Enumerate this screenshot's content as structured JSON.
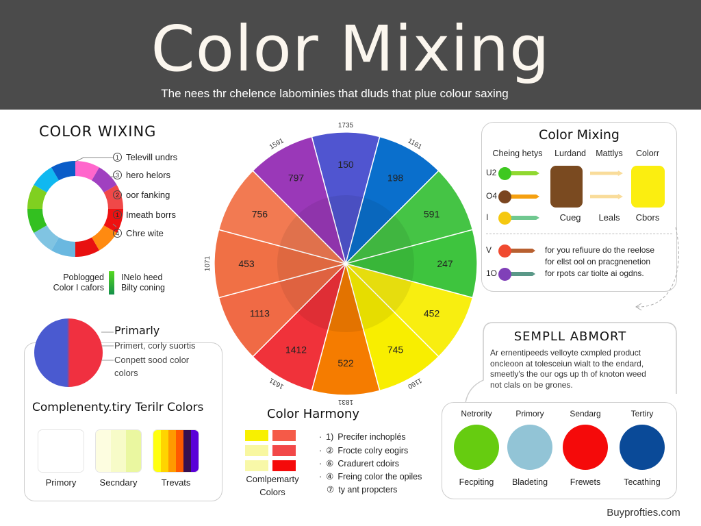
{
  "header": {
    "title": "Color Mixing",
    "subtitle": "The nees thr chelence labominies that dluds that plue colour saxing",
    "background": "#4b4b4b"
  },
  "ring_section": {
    "title": "COLOR WIXING",
    "segments": [
      "#ff66cc",
      "#a040c0",
      "#f04848",
      "#ee1111",
      "#ff8a10",
      "#e81010",
      "#6ab8e0",
      "#80c4e2",
      "#33c020",
      "#80d020",
      "#10b8f0",
      "#0a5cc8"
    ],
    "labels": [
      {
        "num": "1",
        "text": "Televill undrs"
      },
      {
        "num": "3",
        "text": "hero helors"
      },
      {
        "num": "2",
        "text": "oor fanking"
      },
      {
        "num": "1",
        "text": "Imeath borrs"
      },
      {
        "num": "4",
        "text": "Chre wite"
      }
    ],
    "legend_left": [
      "Poblogged",
      "Color I cafors"
    ],
    "legend_right": [
      "INelo heed",
      "Bilty coning"
    ]
  },
  "wheel": {
    "segments": [
      {
        "value": "150",
        "color": "#5055d0"
      },
      {
        "value": "198",
        "color": "#0a6fcc"
      },
      {
        "value": "591",
        "color": "#45c445"
      },
      {
        "value": "247",
        "color": "#3ec43e"
      },
      {
        "value": "452",
        "color": "#f8ee10"
      },
      {
        "value": "745",
        "color": "#f8ee00"
      },
      {
        "value": "522",
        "color": "#f57c00"
      },
      {
        "value": "1412",
        "color": "#f0323a"
      },
      {
        "value": "1113",
        "color": "#f06a45"
      },
      {
        "value": "453",
        "color": "#f07045"
      },
      {
        "value": "756",
        "color": "#f27a52"
      },
      {
        "value": "797",
        "color": "#9a38b8"
      }
    ],
    "outer_labels": [
      {
        "text": "1735",
        "angle": 0
      },
      {
        "text": "1161",
        "angle": 30
      },
      {
        "text": "1160",
        "angle": 150
      },
      {
        "text": "1831",
        "angle": 180
      },
      {
        "text": "1631",
        "angle": 210
      },
      {
        "text": "1071",
        "angle": 270
      },
      {
        "text": "1591",
        "angle": 330
      }
    ]
  },
  "primary": {
    "title": "Primarly",
    "lines": [
      "Primert, corly suortis",
      "Conpett sood color",
      "colors"
    ],
    "colors": [
      "#4a5ad0",
      "#f03040"
    ]
  },
  "complementary": {
    "title": "Complenenty.tiry Terilr Colors",
    "swatches": [
      {
        "label": "Primory",
        "stripes": [
          "#ffffff"
        ]
      },
      {
        "label": "Secndary",
        "stripes": [
          "#fdfde0",
          "#f7fbc8",
          "#eaf7a0"
        ]
      },
      {
        "label": "Trevats",
        "stripes": [
          "#ffff10",
          "#ffd400",
          "#ff9a00",
          "#ff5a00",
          "#3a1050",
          "#5a00d8"
        ]
      }
    ]
  },
  "harmony": {
    "title": "Color Harmony",
    "swatches": [
      [
        "#f8f000",
        "#f55a48"
      ],
      [
        "#f8f7a0",
        "#f24848"
      ],
      [
        "#f8f8a8",
        "#f50a0a"
      ]
    ],
    "caption": [
      "Comlpemarty",
      "Colors"
    ],
    "items": [
      {
        "bullet": "1)",
        "text": "Precifer inchoplés"
      },
      {
        "bullet": "②",
        "text": "Frocte colry eogirs"
      },
      {
        "bullet": "⑥",
        "text": "Cradurert cdoirs"
      },
      {
        "bullet": "④",
        "text": "Freing color the opiles"
      },
      {
        "bullet": "⑦",
        "text": "ty ant propcters"
      }
    ]
  },
  "mixing_card": {
    "title": "Color Mixing",
    "columns": [
      "Cheing hetys",
      "Lurdand",
      "Mattlys",
      "Colorr"
    ],
    "rows": [
      {
        "label": "U2",
        "dot": "#3ec820",
        "bar": "#90d830"
      },
      {
        "label": "O4",
        "dot": "#7a4520",
        "bar": "#f5a010"
      },
      {
        "label": "I",
        "dot": "#f5c810",
        "bar": "#70c890"
      }
    ],
    "mid_box": "#7a4a20",
    "result_box": "#fbee10",
    "footers": [
      "Cueg",
      "Leals",
      "Cbors"
    ],
    "lower_rows": [
      {
        "label": "V",
        "dot": "#f04a30",
        "bar": "#b86030"
      },
      {
        "label": "1O",
        "dot": "#8040b8",
        "bar": "#5a9888"
      }
    ],
    "lower_text": [
      "for you refiuure do the reelose",
      "for ellst ool on pracgnenetion",
      "for rpots car tiolte ai ogdns."
    ]
  },
  "sample_card": {
    "title": "SEMPLL ABMORT",
    "lines": [
      "Ar ernentipeeds velloyte cxmpled product",
      "oncleoon at tolesceiun wialt to the endard,",
      "smeetly's the our ogs up th of knoton weed",
      "not clals on be grones."
    ]
  },
  "circles_card": {
    "items": [
      {
        "header": "Netrority",
        "color": "#66cc10",
        "label": "Fecpiting"
      },
      {
        "header": "Primory",
        "color": "#92c4d6",
        "label": "Bladeting"
      },
      {
        "header": "Sendarg",
        "color": "#f50a0a",
        "label": "Frewets"
      },
      {
        "header": "Tertiry",
        "color": "#0a4a98",
        "label": "Tecathing"
      }
    ]
  },
  "footer": {
    "text": "Buyprofties.com"
  }
}
